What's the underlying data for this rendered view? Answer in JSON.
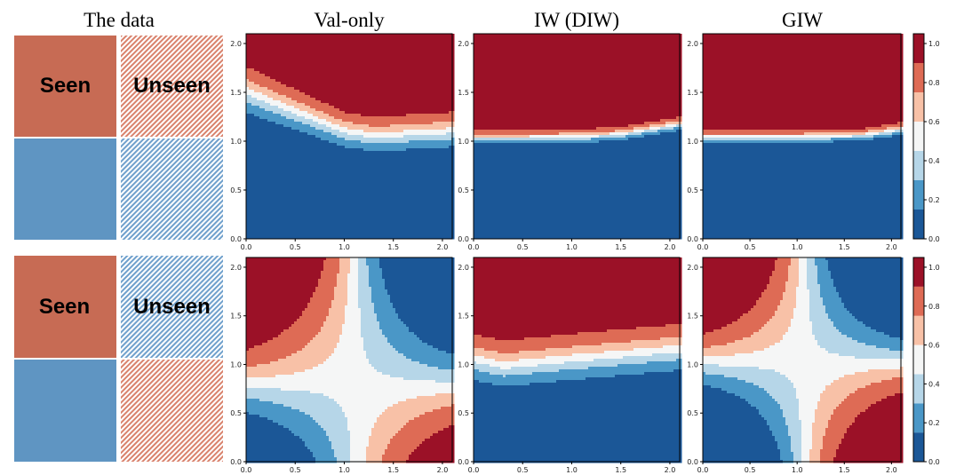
{
  "titles": {
    "data": "The data",
    "val_only": "Val-only",
    "iw": "IW (DIW)",
    "giw": "GIW"
  },
  "data_blocks": {
    "seen_label": "Seen",
    "unseen_label": "Unseen",
    "colors": {
      "red": "#c76b54",
      "blue": "#5f95c2"
    },
    "rows": [
      {
        "seen_top": "red",
        "seen_bottom": "blue",
        "unseen_top": "red",
        "unseen_bottom": "blue"
      },
      {
        "seen_top": "red",
        "seen_bottom": "blue",
        "unseen_top": "blue",
        "unseen_bottom": "red"
      }
    ]
  },
  "chart_data": {
    "type": "contour",
    "xlim": [
      0,
      2.1
    ],
    "ylim": [
      0,
      2.1
    ],
    "xticks": [
      "0.0",
      "0.5",
      "1.0",
      "1.5",
      "2.0"
    ],
    "yticks": [
      "0.0",
      "0.5",
      "1.0",
      "1.5",
      "2.0"
    ],
    "levels": [
      0,
      0.15,
      0.3,
      0.45,
      0.6,
      0.75,
      0.9,
      1.05
    ],
    "level_colors": [
      "#1b5797",
      "#4a97c7",
      "#b6d6e8",
      "#f5f6f6",
      "#f8c1a7",
      "#de6b55",
      "#9b1127"
    ],
    "colorbar": {
      "ticks": [
        "0.0",
        "0.2",
        "0.4",
        "0.6",
        "0.8",
        "1.0"
      ],
      "range": [
        0,
        1.05
      ]
    },
    "panels": [
      {
        "row": 0,
        "method": "Val-only",
        "boundary_y_at_x": {
          "x": [
            0,
            0.5,
            1.0,
            1.3,
            2.1
          ],
          "y": [
            1.5,
            1.3,
            1.1,
            1.05,
            1.1
          ]
        }
      },
      {
        "row": 0,
        "method": "IW (DIW)",
        "boundary_y_at_x": {
          "x": [
            0,
            1.0,
            1.5,
            2.1
          ],
          "y": [
            1.03,
            1.04,
            1.07,
            1.17
          ]
        }
      },
      {
        "row": 0,
        "method": "GIW",
        "boundary_y_at_x": {
          "x": [
            0,
            1.0,
            1.7,
            2.1
          ],
          "y": [
            1.04,
            1.04,
            1.06,
            1.12
          ]
        }
      },
      {
        "row": 1,
        "method": "Val-only",
        "pattern": "XOR saddle centered near (1.05,0.85)"
      },
      {
        "row": 1,
        "method": "IW (DIW)",
        "boundary_y_at_x": {
          "x": [
            0,
            0.3,
            1.0,
            2.1
          ],
          "y": [
            1.05,
            0.98,
            1.05,
            1.15
          ]
        }
      },
      {
        "row": 1,
        "method": "GIW",
        "pattern": "XOR saddle centered near (1.05,1.05)"
      }
    ]
  }
}
